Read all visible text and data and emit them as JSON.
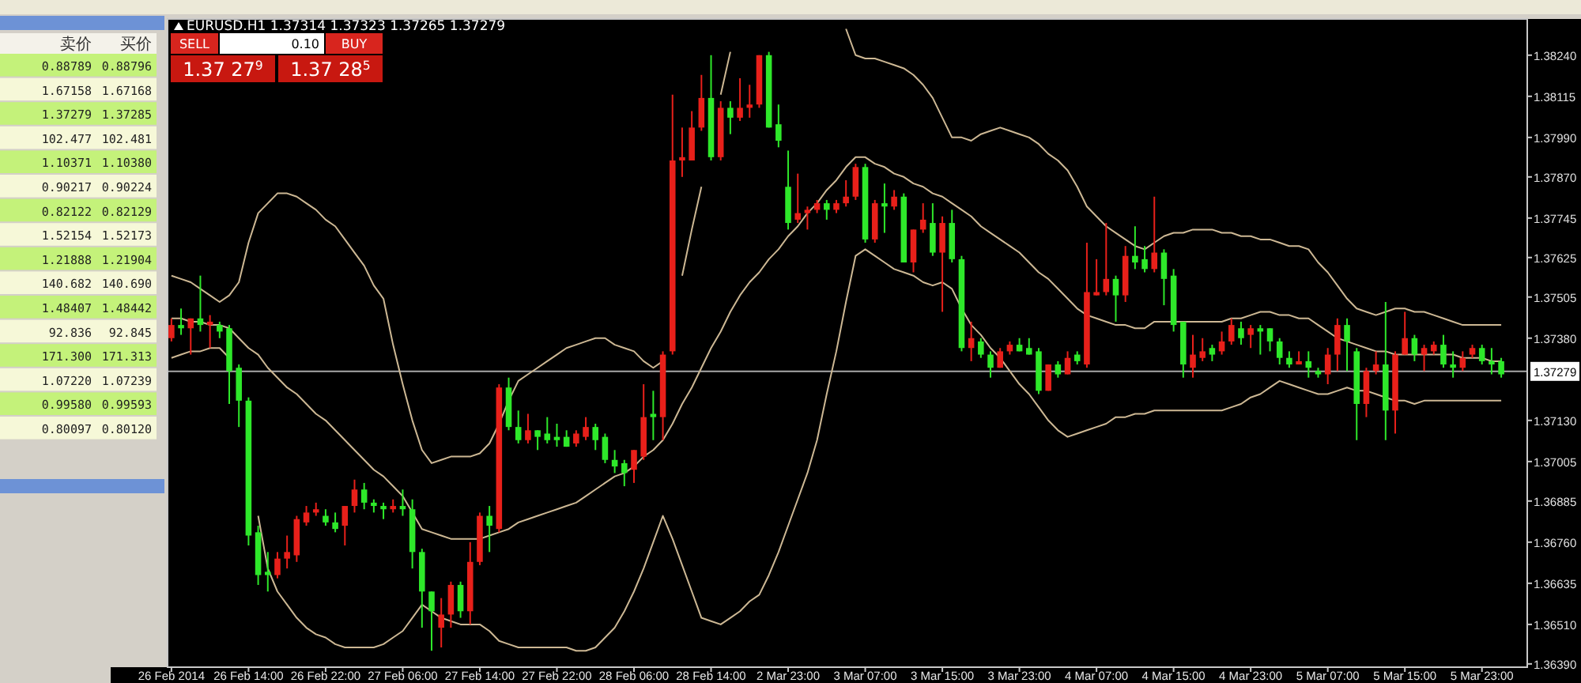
{
  "chart_data": [
    {
      "type": "other",
      "categories": [
        "卖价",
        "买价"
      ],
      "annotations": [
        "0.88789",
        "0.88796",
        "1.67158",
        "1.67168",
        "1.37279",
        "1.37285",
        "102.477",
        "102.481",
        "1.10371",
        "1.10380",
        "0.90217",
        "0.90224",
        "0.82122",
        "0.82129",
        "1.52154",
        "1.52173",
        "1.21888",
        "1.21904",
        "140.682",
        "140.690",
        "1.48407",
        "1.48442",
        "92.836",
        "92.845",
        "171.300",
        "171.313",
        "1.07220",
        "1.07239",
        "0.99580",
        "0.99593",
        "0.80097",
        "0.80120"
      ]
    },
    {
      "type": "candlestick",
      "title": "EURUSD.H1 1.37314 1.37323 1.37265 1.37279",
      "annotations": [
        "SELL",
        "0.10",
        "BUY",
        "1.37 27$^{9}$",
        "1.37 28$^{5}$"
      ],
      "categories": [
        "26 Feb 2014",
        null,
        null,
        null,
        null,
        null,
        null,
        null,
        "26 Feb 14:00",
        null,
        null,
        null,
        null,
        null,
        null,
        null,
        "26 Feb 22:00",
        null,
        null,
        null,
        null,
        null,
        null,
        null,
        "27 Feb 06:00",
        null,
        null,
        null,
        null,
        null,
        null,
        null,
        "27 Feb 14:00",
        null,
        null,
        null,
        null,
        null,
        null,
        null,
        "27 Feb 22:00",
        null,
        null,
        null,
        null,
        null,
        null,
        null,
        "28 Feb 06:00",
        null,
        null,
        null,
        null,
        null,
        null,
        null,
        "28 Feb 14:00",
        null,
        null,
        null,
        null,
        null,
        null,
        null,
        "2 Mar 23:00",
        null,
        null,
        null,
        null,
        null,
        null,
        null,
        "3 Mar 07:00",
        null,
        null,
        null,
        null,
        null,
        null,
        null,
        "3 Mar 15:00",
        null,
        null,
        null,
        null,
        null,
        null,
        null,
        "3 Mar 23:00",
        null,
        null,
        null,
        null,
        null,
        null,
        null,
        "4 Mar 07:00",
        null,
        null,
        null,
        null,
        null,
        null,
        null,
        "4 Mar 15:00",
        null,
        null,
        null,
        null,
        null,
        null,
        null,
        "4 Mar 23:00",
        null,
        null,
        null,
        null,
        null,
        null,
        null,
        "5 Mar 07:00",
        null,
        null,
        null,
        null,
        null,
        null,
        null,
        "5 Mar 15:00",
        null,
        null,
        null,
        null,
        null,
        null,
        null,
        "5 Mar 23:00",
        null,
        null
      ],
      "ohlc": [
        [
          1.3738,
          1.3744,
          1.3737,
          1.3742
        ],
        [
          1.3742,
          1.3747,
          1.3739,
          1.3741
        ],
        [
          1.3741,
          1.3744,
          1.3733,
          1.3744
        ],
        [
          1.3744,
          1.3757,
          1.374,
          1.3742
        ],
        [
          1.3742,
          1.3745,
          1.3735,
          1.3743
        ],
        [
          1.3742,
          1.3743,
          1.3738,
          1.374
        ],
        [
          1.3741,
          1.3742,
          1.3718,
          1.3728
        ],
        [
          1.3729,
          1.373,
          1.3711,
          1.3719
        ],
        [
          1.3719,
          1.372,
          1.3675,
          1.3678
        ],
        [
          1.3679,
          1.3681,
          1.3663,
          1.3666
        ],
        [
          1.3667,
          1.3673,
          1.3661,
          1.3666
        ],
        [
          1.3666,
          1.3673,
          1.3665,
          1.3671
        ],
        [
          1.3671,
          1.3678,
          1.3668,
          1.3673
        ],
        [
          1.3672,
          1.3684,
          1.367,
          1.3683
        ],
        [
          1.3682,
          1.3687,
          1.3681,
          1.3685
        ],
        [
          1.3685,
          1.3688,
          1.3684,
          1.3686
        ],
        [
          1.3684,
          1.3686,
          1.3681,
          1.3682
        ],
        [
          1.3682,
          1.3685,
          1.3679,
          1.368
        ],
        [
          1.3681,
          1.3687,
          1.3675,
          1.3687
        ],
        [
          1.3687,
          1.3695,
          1.3685,
          1.3692
        ],
        [
          1.3692,
          1.3694,
          1.3686,
          1.3688
        ],
        [
          1.3688,
          1.3689,
          1.3685,
          1.3687
        ],
        [
          1.3687,
          1.3688,
          1.3683,
          1.3686
        ],
        [
          1.3686,
          1.3689,
          1.3685,
          1.3687
        ],
        [
          1.3687,
          1.3692,
          1.3684,
          1.3686
        ],
        [
          1.3686,
          1.3689,
          1.3668,
          1.3673
        ],
        [
          1.3673,
          1.3674,
          1.365,
          1.3661
        ],
        [
          1.3661,
          1.3661,
          1.3643,
          1.3655
        ],
        [
          1.365,
          1.3659,
          1.3644,
          1.3654
        ],
        [
          1.3654,
          1.3664,
          1.365,
          1.3663
        ],
        [
          1.3663,
          1.3664,
          1.3653,
          1.3655
        ],
        [
          1.3655,
          1.3676,
          1.3651,
          1.367
        ],
        [
          1.367,
          1.3685,
          1.3669,
          1.3684
        ],
        [
          1.3684,
          1.3687,
          1.3673,
          1.3681
        ],
        [
          1.368,
          1.3724,
          1.3679,
          1.3723
        ],
        [
          1.3723,
          1.3726,
          1.371,
          1.3711
        ],
        [
          1.3711,
          1.3716,
          1.3706,
          1.3707
        ],
        [
          1.3707,
          1.3715,
          1.3706,
          1.371
        ],
        [
          1.371,
          1.371,
          1.3704,
          1.3708
        ],
        [
          1.3709,
          1.3714,
          1.3706,
          1.3707
        ],
        [
          1.3708,
          1.3712,
          1.3705,
          1.3707
        ],
        [
          1.3708,
          1.371,
          1.3705,
          1.3705
        ],
        [
          1.3706,
          1.371,
          1.3705,
          1.3709
        ],
        [
          1.3708,
          1.3714,
          1.3707,
          1.3711
        ],
        [
          1.3711,
          1.3712,
          1.3704,
          1.3707
        ],
        [
          1.3708,
          1.3709,
          1.37,
          1.3701
        ],
        [
          1.3701,
          1.3704,
          1.3697,
          1.3699
        ],
        [
          1.37,
          1.3701,
          1.3693,
          1.3697
        ],
        [
          1.3698,
          1.3704,
          1.3694,
          1.3704
        ],
        [
          1.3702,
          1.3724,
          1.3701,
          1.3714
        ],
        [
          1.3715,
          1.3722,
          1.3707,
          1.3714
        ],
        [
          1.3714,
          1.3734,
          1.3707,
          1.3733
        ],
        [
          1.3734,
          1.3812,
          1.3733,
          1.3792
        ],
        [
          1.3792,
          1.3802,
          1.3787,
          1.3793
        ],
        [
          1.3792,
          1.3807,
          1.3792,
          1.3802
        ],
        [
          1.3802,
          1.3818,
          1.3801,
          1.3811
        ],
        [
          1.3811,
          1.3824,
          1.3792,
          1.3793
        ],
        [
          1.3793,
          1.381,
          1.3792,
          1.3808
        ],
        [
          1.3808,
          1.381,
          1.38,
          1.3805
        ],
        [
          1.3805,
          1.3817,
          1.3804,
          1.3808
        ],
        [
          1.3808,
          1.3815,
          1.3805,
          1.3809
        ],
        [
          1.3809,
          1.3824,
          1.3808,
          1.3824
        ],
        [
          1.3824,
          1.3825,
          1.3802,
          1.3802
        ],
        [
          1.3803,
          1.3809,
          1.3796,
          1.3798
        ],
        [
          1.3784,
          1.3795,
          1.3771,
          1.3773
        ],
        [
          1.3774,
          1.3788,
          1.3773,
          1.3776
        ],
        [
          1.3776,
          1.3778,
          1.3771,
          1.3777
        ],
        [
          1.3777,
          1.378,
          1.3776,
          1.3779
        ],
        [
          1.3779,
          1.378,
          1.3774,
          1.3777
        ],
        [
          1.3777,
          1.378,
          1.3776,
          1.3779
        ],
        [
          1.3779,
          1.3786,
          1.3778,
          1.3781
        ],
        [
          1.3781,
          1.3791,
          1.378,
          1.379
        ],
        [
          1.379,
          1.3791,
          1.3767,
          1.3768
        ],
        [
          1.3768,
          1.378,
          1.3767,
          1.3779
        ],
        [
          1.3779,
          1.3785,
          1.377,
          1.3778
        ],
        [
          1.3778,
          1.3783,
          1.3777,
          1.3781
        ],
        [
          1.3781,
          1.3782,
          1.3761,
          1.3761
        ],
        [
          1.3761,
          1.3771,
          1.3758,
          1.3771
        ],
        [
          1.3771,
          1.3779,
          1.377,
          1.3774
        ],
        [
          1.3773,
          1.3779,
          1.3763,
          1.3764
        ],
        [
          1.3764,
          1.3775,
          1.3746,
          1.3773
        ],
        [
          1.3773,
          1.3777,
          1.3761,
          1.3762
        ],
        [
          1.3762,
          1.3763,
          1.3734,
          1.3735
        ],
        [
          1.3735,
          1.3743,
          1.3731,
          1.3738
        ],
        [
          1.3737,
          1.3738,
          1.3732,
          1.3733
        ],
        [
          1.3733,
          1.3734,
          1.3726,
          1.3729
        ],
        [
          1.3729,
          1.3735,
          1.3729,
          1.3734
        ],
        [
          1.3734,
          1.3737,
          1.3733,
          1.3736
        ],
        [
          1.3736,
          1.3738,
          1.3734,
          1.3734
        ],
        [
          1.3735,
          1.3738,
          1.3733,
          1.3733
        ],
        [
          1.3734,
          1.3735,
          1.3721,
          1.3722
        ],
        [
          1.3722,
          1.373,
          1.3722,
          1.373
        ],
        [
          1.373,
          1.3731,
          1.3726,
          1.3727
        ],
        [
          1.3727,
          1.3734,
          1.3727,
          1.3732
        ],
        [
          1.3733,
          1.3734,
          1.373,
          1.3731
        ],
        [
          1.373,
          1.3767,
          1.3729,
          1.3752
        ],
        [
          1.3751,
          1.3762,
          1.3751,
          1.3752
        ],
        [
          1.3752,
          1.3773,
          1.3751,
          1.3756
        ],
        [
          1.3756,
          1.3757,
          1.3743,
          1.3751
        ],
        [
          1.3751,
          1.3766,
          1.3749,
          1.3763
        ],
        [
          1.3763,
          1.3772,
          1.3759,
          1.3761
        ],
        [
          1.3762,
          1.3766,
          1.3758,
          1.3759
        ],
        [
          1.3759,
          1.3781,
          1.3758,
          1.3764
        ],
        [
          1.3764,
          1.3765,
          1.3748,
          1.3756
        ],
        [
          1.3757,
          1.3759,
          1.374,
          1.3742
        ],
        [
          1.3743,
          1.3743,
          1.3726,
          1.373
        ],
        [
          1.3729,
          1.3739,
          1.3726,
          1.3733
        ],
        [
          1.3732,
          1.3738,
          1.3731,
          1.3734
        ],
        [
          1.3735,
          1.3736,
          1.3731,
          1.3733
        ],
        [
          1.3734,
          1.374,
          1.3733,
          1.3737
        ],
        [
          1.3737,
          1.3744,
          1.3736,
          1.3742
        ],
        [
          1.3741,
          1.3743,
          1.3736,
          1.3738
        ],
        [
          1.3739,
          1.3742,
          1.3735,
          1.3741
        ],
        [
          1.3741,
          1.3742,
          1.3733,
          1.374
        ],
        [
          1.3741,
          1.3741,
          1.3734,
          1.3737
        ],
        [
          1.3737,
          1.3738,
          1.373,
          1.3732
        ],
        [
          1.3732,
          1.3734,
          1.3729,
          1.373
        ],
        [
          1.373,
          1.3734,
          1.373,
          1.3731
        ],
        [
          1.3731,
          1.3734,
          1.3726,
          1.3729
        ],
        [
          1.3728,
          1.3729,
          1.3726,
          1.3727
        ],
        [
          1.3727,
          1.3735,
          1.3724,
          1.3733
        ],
        [
          1.3733,
          1.3744,
          1.3728,
          1.3742
        ],
        [
          1.3742,
          1.3744,
          1.3728,
          1.3737
        ],
        [
          1.3734,
          1.3735,
          1.3707,
          1.3718
        ],
        [
          1.3718,
          1.3729,
          1.3714,
          1.3728
        ],
        [
          1.3728,
          1.3734,
          1.3727,
          1.373
        ],
        [
          1.373,
          1.3749,
          1.3707,
          1.3716
        ],
        [
          1.3716,
          1.3734,
          1.3709,
          1.3733
        ],
        [
          1.3733,
          1.3746,
          1.3733,
          1.3738
        ],
        [
          1.3738,
          1.3739,
          1.3731,
          1.3733
        ],
        [
          1.3733,
          1.3736,
          1.3728,
          1.3735
        ],
        [
          1.3734,
          1.3737,
          1.3733,
          1.3736
        ],
        [
          1.3736,
          1.3739,
          1.3729,
          1.373
        ],
        [
          1.373,
          1.3734,
          1.3726,
          1.3729
        ],
        [
          1.3729,
          1.3734,
          1.3728,
          1.3732
        ],
        [
          1.3733,
          1.3736,
          1.3732,
          1.3735
        ],
        [
          1.3735,
          1.3736,
          1.373,
          1.3731
        ],
        [
          1.3731,
          1.3735,
          1.3727,
          1.373
        ],
        [
          1.3731,
          1.3732,
          1.3726,
          1.3727
        ]
      ],
      "colors": [
        "#e8201a",
        "#2ee82a",
        "#e8201a",
        "#2ee82a",
        "#e8201a",
        "#2ee82a",
        "#2ee82a",
        "#2ee82a",
        "#2ee82a",
        "#2ee82a",
        "#2ee82a",
        "#e8201a",
        "#e8201a",
        "#e8201a",
        "#e8201a",
        "#e8201a",
        "#2ee82a",
        "#2ee82a",
        "#e8201a",
        "#e8201a",
        "#2ee82a",
        "#2ee82a",
        "#2ee82a",
        "#e8201a",
        "#2ee82a",
        "#2ee82a",
        "#2ee82a",
        "#2ee82a",
        "#e8201a",
        "#e8201a",
        "#2ee82a",
        "#e8201a",
        "#e8201a",
        "#2ee82a",
        "#e8201a",
        "#2ee82a",
        "#2ee82a",
        "#e8201a",
        "#2ee82a",
        "#2ee82a",
        "#2ee82a",
        "#2ee82a",
        "#e8201a",
        "#e8201a",
        "#2ee82a",
        "#2ee82a",
        "#2ee82a",
        "#2ee82a",
        "#e8201a",
        "#e8201a",
        "#2ee82a",
        "#e8201a",
        "#e8201a",
        "#e8201a",
        "#e8201a",
        "#e8201a",
        "#2ee82a",
        "#e8201a",
        "#2ee82a",
        "#e8201a",
        "#e8201a",
        "#e8201a",
        "#2ee82a",
        "#2ee82a",
        "#2ee82a",
        "#e8201a",
        "#e8201a",
        "#e8201a",
        "#2ee82a",
        "#e8201a",
        "#e8201a",
        "#e8201a",
        "#2ee82a",
        "#e8201a",
        "#2ee82a",
        "#e8201a",
        "#2ee82a",
        "#e8201a",
        "#e8201a",
        "#2ee82a",
        "#e8201a",
        "#2ee82a",
        "#2ee82a",
        "#e8201a",
        "#2ee82a",
        "#2ee82a",
        "#e8201a",
        "#e8201a",
        "#2ee82a",
        "#2ee82a",
        "#2ee82a",
        "#e8201a",
        "#2ee82a",
        "#e8201a",
        "#2ee82a",
        "#e8201a",
        "#e8201a",
        "#e8201a",
        "#2ee82a",
        "#e8201a",
        "#2ee82a",
        "#2ee82a",
        "#e8201a",
        "#2ee82a",
        "#2ee82a",
        "#2ee82a",
        "#e8201a",
        "#e8201a",
        "#2ee82a",
        "#e8201a",
        "#e8201a",
        "#2ee82a",
        "#e8201a",
        "#2ee82a",
        "#2ee82a",
        "#2ee82a",
        "#2ee82a",
        "#e8201a",
        "#2ee82a",
        "#2ee82a",
        "#e8201a",
        "#e8201a",
        "#2ee82a",
        "#2ee82a",
        "#e8201a",
        "#e8201a",
        "#2ee82a",
        "#e8201a",
        "#e8201a",
        "#2ee82a",
        "#e8201a",
        "#e8201a",
        "#2ee82a",
        "#2ee82a",
        "#e8201a",
        "#e8201a",
        "#2ee82a",
        "#2ee82a",
        "#2ee82a"
      ],
      "series": [
        {
          "type": "line",
          "color": "#cdb894",
          "values": [
            1.3757,
            1.3756,
            1.3755,
            1.3753,
            1.3751,
            1.3749,
            1.3751,
            1.3755,
            1.3767,
            1.3776,
            1.3779,
            1.3782,
            1.3782,
            1.3781,
            1.3779,
            1.3777,
            1.3774,
            1.3772,
            1.3768,
            1.3764,
            1.376,
            1.3754,
            1.375,
            1.3736,
            1.3724,
            1.3713,
            1.3704,
            1.37,
            1.3701,
            1.3702,
            1.3702,
            1.3702,
            1.3703,
            1.3706,
            1.3712,
            1.3719,
            1.3725,
            1.3727,
            1.3729,
            1.3731,
            1.3733,
            1.3735,
            1.3736,
            1.3737,
            1.3738,
            1.3738,
            1.3736,
            1.3735,
            1.3734,
            1.3731,
            1.3729,
            1.3731,
            null,
            1.3757,
            1.3771,
            1.3784,
            null,
            1.3812,
            1.3825,
            null,
            null,
            null,
            null,
            null,
            null,
            null,
            null,
            null,
            null,
            null,
            1.3832,
            1.3824,
            1.3823,
            1.3823,
            1.3822,
            1.3821,
            1.382,
            1.3818,
            1.3815,
            1.3811,
            1.3805,
            1.3799,
            1.3799,
            1.3798,
            1.38,
            1.3801,
            1.3802,
            1.3801,
            1.38,
            1.3799,
            1.3797,
            1.3794,
            1.3792,
            1.3789,
            1.3784,
            1.3778,
            1.3775,
            1.3772,
            1.377,
            1.3768,
            1.3766,
            1.3765,
            1.3767,
            1.3769,
            1.377,
            1.377,
            1.3771,
            1.3771,
            1.3771,
            1.377,
            1.377,
            1.3769,
            1.3769,
            1.3768,
            1.3768,
            1.3767,
            1.3766,
            1.3766,
            1.3765,
            1.3761,
            1.3758,
            1.3754,
            1.375,
            1.3747,
            1.3746,
            1.3745,
            1.3746,
            1.3747,
            1.3747,
            1.3746,
            1.3746,
            1.3745,
            1.3744,
            1.3743,
            1.3742,
            1.3742,
            1.3742,
            1.3742,
            1.3742
          ]
        },
        {
          "type": "line",
          "color": "#cdb894",
          "values": [
            1.3744,
            1.3744,
            1.3743,
            1.3743,
            1.3742,
            1.3742,
            1.3741,
            1.3738,
            1.3735,
            1.3733,
            1.3729,
            1.3726,
            1.3723,
            1.3721,
            1.3718,
            1.3715,
            1.3713,
            1.371,
            1.3707,
            1.3704,
            1.3701,
            1.3698,
            1.3696,
            1.3693,
            1.369,
            1.3685,
            1.368,
            1.3679,
            1.3678,
            1.3677,
            1.3677,
            1.3677,
            1.3677,
            1.3678,
            1.3679,
            1.368,
            1.3682,
            1.3683,
            1.3684,
            1.3685,
            1.3686,
            1.3687,
            1.3688,
            1.369,
            1.3692,
            1.3694,
            1.3696,
            1.3697,
            1.3699,
            1.3702,
            1.3704,
            1.3707,
            1.3712,
            1.3718,
            1.3723,
            1.3729,
            1.3735,
            1.374,
            1.3746,
            1.3751,
            1.3755,
            1.3758,
            1.3762,
            1.3765,
            1.3769,
            1.3772,
            1.3776,
            1.3779,
            1.3783,
            1.3786,
            1.379,
            1.3793,
            1.3793,
            1.3791,
            1.379,
            1.3788,
            1.3787,
            1.3785,
            1.3784,
            1.3782,
            1.3781,
            1.3779,
            1.3777,
            1.3775,
            1.3772,
            1.377,
            1.3768,
            1.3766,
            1.3764,
            1.3761,
            1.3758,
            1.3756,
            1.3753,
            1.375,
            1.3747,
            1.3745,
            1.3744,
            1.3743,
            1.3742,
            1.3742,
            1.3741,
            1.3741,
            1.3743,
            1.3743,
            1.3743,
            1.3743,
            1.3743,
            1.3743,
            1.3743,
            1.3743,
            1.3744,
            1.3744,
            1.3745,
            1.3746,
            1.3746,
            1.3745,
            1.3745,
            1.3744,
            1.3744,
            1.3742,
            1.374,
            1.3738,
            1.3737,
            1.3736,
            1.3735,
            1.3734,
            1.3734,
            1.3733,
            1.3733,
            1.3733,
            1.3733,
            1.3733,
            1.3733,
            1.3733,
            1.3732,
            1.3732,
            1.3732,
            1.3731,
            1.3731
          ]
        },
        {
          "type": "line",
          "color": "#cdb894",
          "values": [
            1.3732,
            1.3733,
            1.3734,
            1.3734,
            1.3735,
            1.3735,
            1.3732,
            null,
            null,
            1.3684,
            1.3668,
            1.3661,
            1.3657,
            1.3653,
            1.365,
            1.3648,
            1.3647,
            1.3645,
            1.3644,
            1.3644,
            1.3644,
            1.3644,
            1.3645,
            1.3647,
            1.3649,
            1.3653,
            1.3657,
            1.3655,
            1.3653,
            1.3652,
            1.3651,
            1.3651,
            1.3651,
            1.3649,
            1.3646,
            1.3645,
            1.3644,
            1.3644,
            1.3644,
            1.3644,
            1.3644,
            1.3644,
            1.3643,
            1.3643,
            1.3644,
            1.3647,
            1.365,
            1.3655,
            1.3661,
            1.3668,
            1.3676,
            1.3684,
            1.3677,
            1.3669,
            1.3661,
            1.3653,
            1.3652,
            1.3651,
            1.3653,
            1.3655,
            1.3658,
            1.366,
            1.3666,
            1.3673,
            1.3681,
            1.3689,
            1.3697,
            1.3707,
            1.3721,
            1.3734,
            1.3749,
            1.3763,
            1.3765,
            1.3763,
            1.3761,
            1.3759,
            1.3758,
            1.3757,
            1.3755,
            1.3754,
            1.3755,
            1.3753,
            1.3747,
            1.3742,
            1.3739,
            1.3735,
            1.3732,
            1.3728,
            1.3724,
            1.3721,
            1.3717,
            1.3713,
            1.371,
            1.3708,
            1.3709,
            1.371,
            1.3711,
            1.3712,
            1.3714,
            1.3714,
            1.3715,
            1.3715,
            1.3716,
            1.3716,
            1.3716,
            1.3716,
            1.3716,
            1.3716,
            1.3716,
            1.3716,
            1.3717,
            1.3718,
            1.372,
            1.3721,
            1.3723,
            1.3725,
            1.3724,
            1.3723,
            1.3722,
            1.3721,
            1.3721,
            1.3722,
            1.3723,
            1.3722,
            1.3722,
            1.3721,
            1.372,
            1.3719,
            1.3719,
            1.3718,
            1.3719,
            1.3719,
            1.3719,
            1.3719,
            1.3719,
            1.3719,
            1.3719,
            1.3719,
            1.3719
          ]
        }
      ],
      "ylim": [
        1.3638,
        1.3835
      ],
      "yticks": [
        {
          "value": 1.3824,
          "label": "1.38240"
        },
        {
          "value": 1.38115,
          "label": "1.38115"
        },
        {
          "value": 1.3799,
          "label": "1.37990"
        },
        {
          "value": 1.3787,
          "label": "1.37870"
        },
        {
          "value": 1.37745,
          "label": "1.37745"
        },
        {
          "value": 1.37625,
          "label": "1.37625"
        },
        {
          "value": 1.37505,
          "label": "1.37505"
        },
        {
          "value": 1.3738,
          "label": "1.37380"
        },
        {
          "value": 1.3713,
          "label": "1.37130"
        },
        {
          "value": 1.37005,
          "label": "1.37005"
        },
        {
          "value": 1.36885,
          "label": "1.36885"
        },
        {
          "value": 1.3676,
          "label": "1.36760"
        },
        {
          "value": 1.36635,
          "label": "1.36635"
        },
        {
          "value": 1.3651,
          "label": "1.36510"
        },
        {
          "value": 1.3639,
          "label": "1.36390"
        }
      ],
      "ref_lines": [
        {
          "axis": "y",
          "value": 1.37279,
          "label": "1.37279",
          "color": "#a8a8a8"
        }
      ]
    }
  ]
}
